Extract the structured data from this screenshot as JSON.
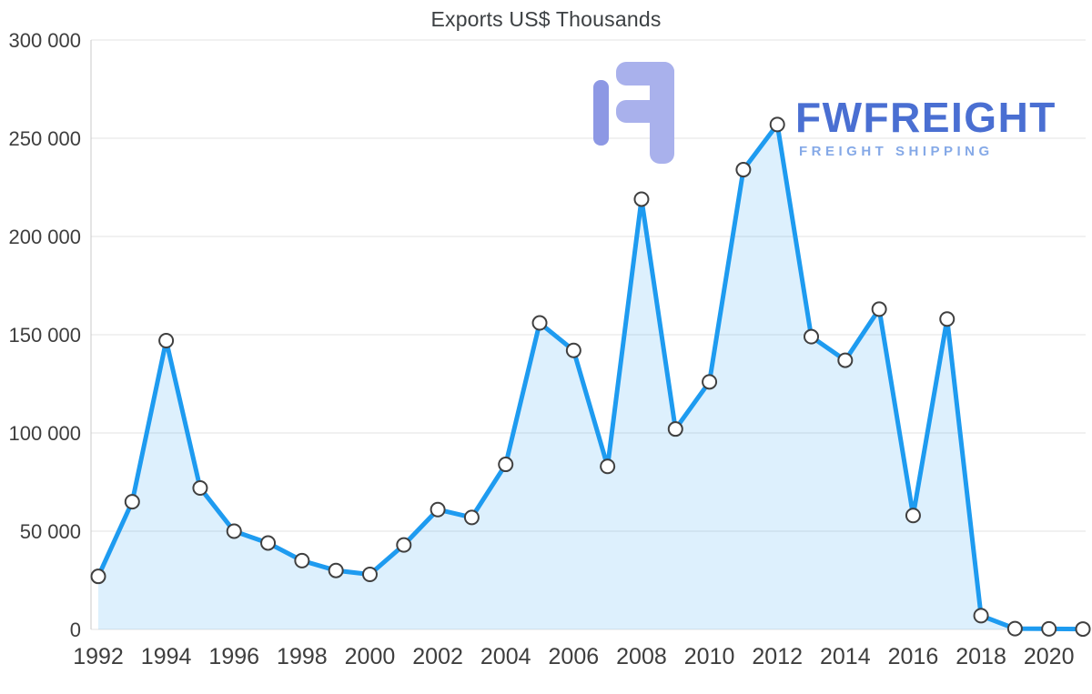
{
  "title": "Exports US$ Thousands",
  "watermark": {
    "brand": "FWFREIGHT",
    "tagline": "FREIGHT SHIPPING",
    "brand_color": "#4a6fd2",
    "tagline_color": "#85a9e7",
    "logo_color_main": "#a9b1ec",
    "logo_color_accent": "#8d98e4"
  },
  "chart_data": {
    "type": "area",
    "title": "Exports US$ Thousands",
    "x": [
      1992,
      1993,
      1994,
      1995,
      1996,
      1997,
      1998,
      1999,
      2000,
      2001,
      2002,
      2003,
      2004,
      2005,
      2006,
      2007,
      2008,
      2009,
      2010,
      2011,
      2012,
      2013,
      2014,
      2015,
      2016,
      2017,
      2018,
      2019,
      2020,
      2021
    ],
    "values": [
      27000,
      65000,
      147000,
      72000,
      50000,
      44000,
      35000,
      30000,
      28000,
      43000,
      61000,
      57000,
      84000,
      156000,
      142000,
      83000,
      219000,
      102000,
      126000,
      234000,
      257000,
      149000,
      137000,
      163000,
      58000,
      158000,
      7000,
      400,
      300,
      200
    ],
    "series_name": "Exports US$ Thousands",
    "xlabel": "",
    "ylabel": "",
    "ylim": [
      0,
      300000
    ],
    "y_ticks": [
      0,
      50000,
      100000,
      150000,
      200000,
      250000,
      300000
    ],
    "y_tick_labels": [
      "0",
      "50 000",
      "100 000",
      "150 000",
      "200 000",
      "250 000",
      "300 000"
    ],
    "x_tick_labels": [
      "1992",
      "1994",
      "1996",
      "1998",
      "2000",
      "2002",
      "2004",
      "2006",
      "2008",
      "2010",
      "2012",
      "2014",
      "2016",
      "2018",
      "2020"
    ],
    "grid": "horizontal",
    "legend": "none",
    "colors": {
      "line": "#1e9bf0",
      "fill": "rgba(30,154,240,0.15)",
      "marker_fill": "#ffffff",
      "marker_stroke": "#404040",
      "grid": "#e3e3e3",
      "axis": "#c9c9c9",
      "text": "#3e3e3e"
    }
  }
}
